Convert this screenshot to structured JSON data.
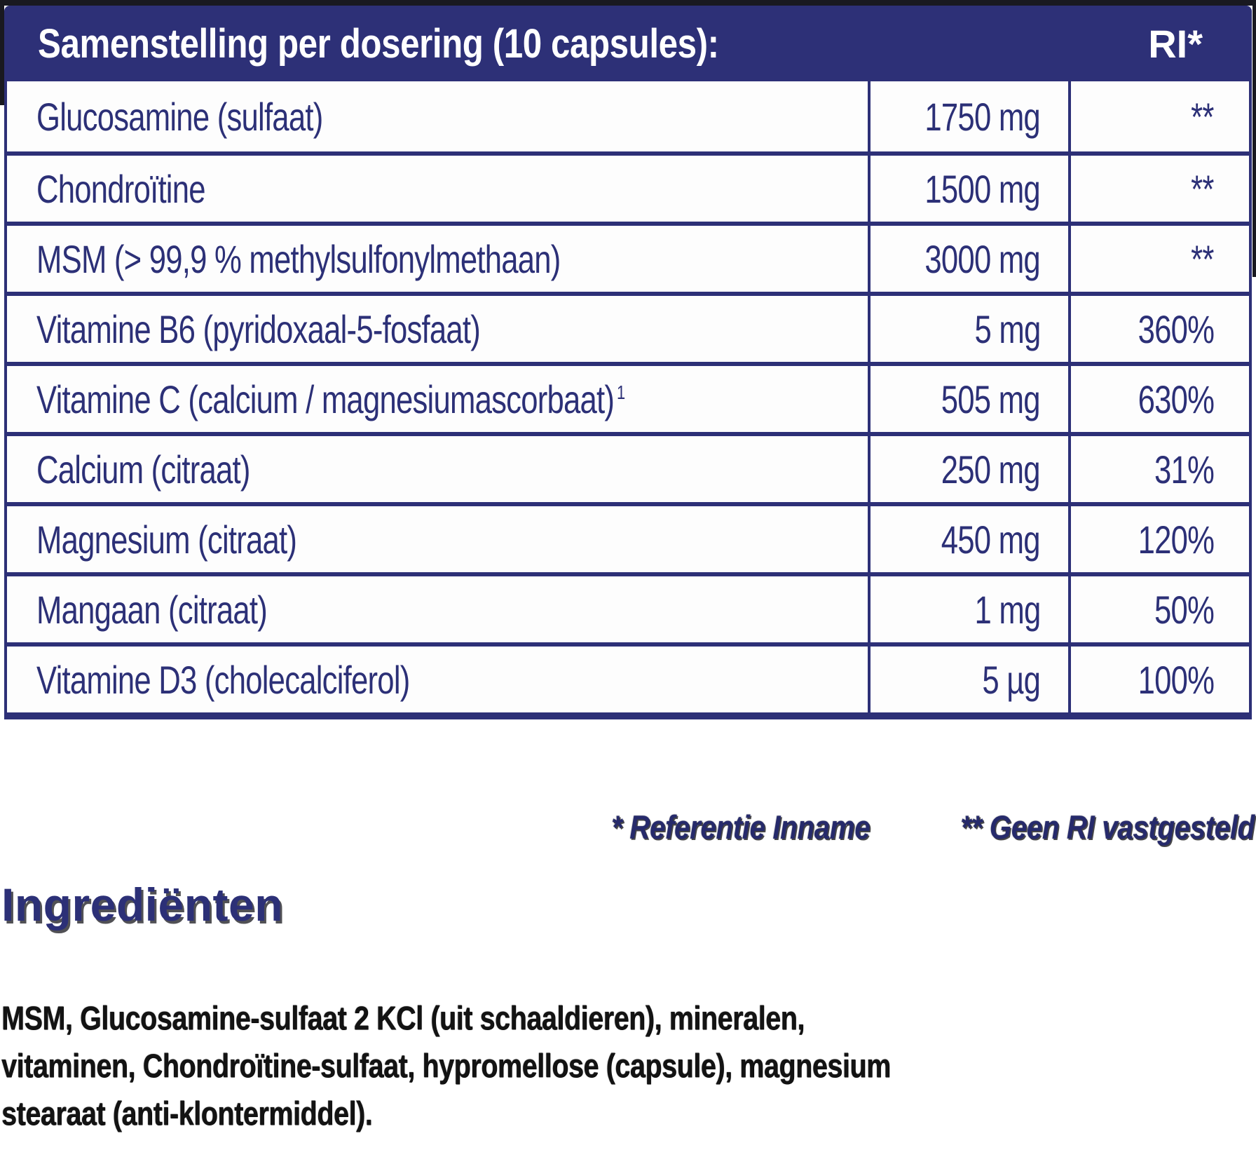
{
  "colors": {
    "navy": "#2d3077",
    "white": "#ffffff",
    "paragraph_ink": "#131313",
    "edge_dark": "#191920"
  },
  "table": {
    "header": {
      "title": "Samenstelling per dosering (10 capsules):",
      "ri_label": "RI*"
    },
    "rows": [
      {
        "name": "Glucosamine (sulfaat)",
        "amount": "1750 mg",
        "ri": "**"
      },
      {
        "name": "Chondroïtine",
        "amount": "1500 mg",
        "ri": "**"
      },
      {
        "name": "MSM (> 99,9 % methylsulfonylmethaan)",
        "amount": "3000 mg",
        "ri": "**"
      },
      {
        "name": "Vitamine B6 (pyridoxaal-5-fosfaat)",
        "amount": "5 mg",
        "ri": "360%"
      },
      {
        "name": "Vitamine C (calcium / magnesiumascorbaat)",
        "name_sup": "1",
        "amount": "505 mg",
        "ri": "630%"
      },
      {
        "name": "Calcium (citraat)",
        "amount": "250 mg",
        "ri": "31%"
      },
      {
        "name": "Magnesium (citraat)",
        "amount": "450 mg",
        "ri": "120%"
      },
      {
        "name": "Mangaan (citraat)",
        "amount": "1 mg",
        "ri": "50%"
      },
      {
        "name": "Vitamine D3 (cholecalciferol)",
        "amount": "5 µg",
        "ri": "100%"
      }
    ]
  },
  "footnote": {
    "reference": "* Referentie Inname",
    "no_ri": "** Geen RI vastgesteld"
  },
  "ingredients": {
    "heading": "Ingrediënten",
    "lines": [
      "MSM, Glucosamine-sulfaat 2 KCl (uit schaaldieren), mineralen,",
      "vitaminen, Chondroïtine-sulfaat, hypromellose (capsule), magnesium",
      "stearaat (anti-klontermiddel)."
    ]
  }
}
